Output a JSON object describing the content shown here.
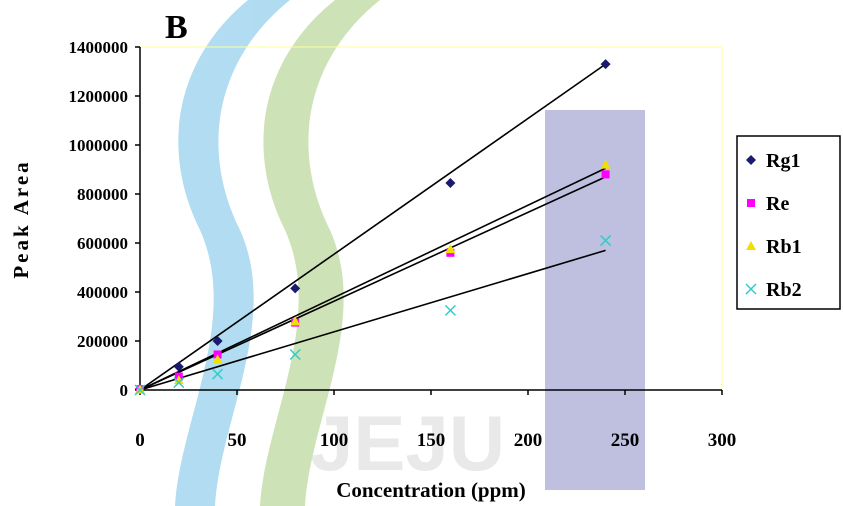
{
  "panel_label": "B",
  "colors": {
    "plot_frame": "#ffff99",
    "axis": "#000000",
    "Rg1": "#1a1a6e",
    "Re": "#ff00ff",
    "Rb1": "#f0e000",
    "Rb2": "#33cccc",
    "trendline": "#000000"
  },
  "watermark": {
    "text": "JEJU",
    "colors": [
      "#a8d8f0",
      "#c8e0b0",
      "#b8b8dc"
    ]
  },
  "chart_data": {
    "type": "scatter",
    "title": "",
    "xlabel": "Concentration (ppm)",
    "ylabel": "Peak Area",
    "xlim": [
      0,
      300
    ],
    "ylim": [
      0,
      1400000
    ],
    "xticks": [
      0,
      50,
      100,
      150,
      200,
      250,
      300
    ],
    "yticks": [
      0,
      200000,
      400000,
      600000,
      800000,
      1000000,
      1200000,
      1400000
    ],
    "grid": false,
    "legend_position": "right",
    "series": [
      {
        "name": "Rg1",
        "marker": "diamond",
        "x": [
          0,
          20,
          40,
          80,
          160,
          240
        ],
        "y": [
          5000,
          95000,
          200000,
          415000,
          845000,
          1330000
        ],
        "trendline": [
          [
            0,
            0
          ],
          [
            240,
            1330000
          ]
        ]
      },
      {
        "name": "Re",
        "marker": "square",
        "x": [
          0,
          20,
          40,
          80,
          160,
          240
        ],
        "y": [
          3000,
          55000,
          145000,
          275000,
          560000,
          880000
        ],
        "trendline": [
          [
            0,
            0
          ],
          [
            240,
            870000
          ]
        ]
      },
      {
        "name": "Rb1",
        "marker": "triangle",
        "x": [
          0,
          20,
          40,
          80,
          160,
          240
        ],
        "y": [
          2000,
          40000,
          125000,
          280000,
          575000,
          920000
        ],
        "trendline": [
          [
            0,
            0
          ],
          [
            240,
            905000
          ]
        ]
      },
      {
        "name": "Rb2",
        "marker": "x",
        "x": [
          0,
          20,
          40,
          80,
          160,
          240
        ],
        "y": [
          0,
          30000,
          65000,
          145000,
          325000,
          610000
        ],
        "trendline": [
          [
            0,
            0
          ],
          [
            240,
            570000
          ]
        ]
      }
    ]
  }
}
